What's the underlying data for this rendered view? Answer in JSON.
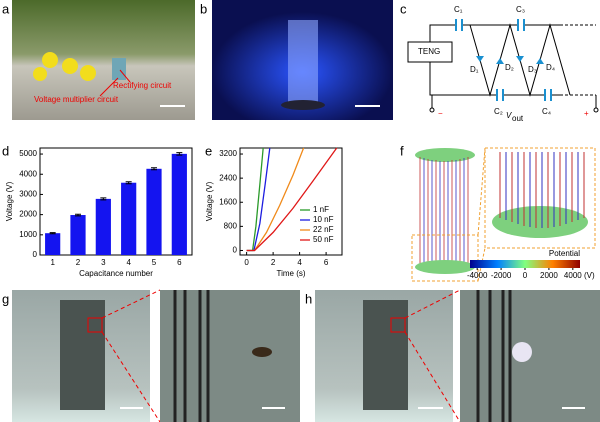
{
  "panel_labels": [
    "a",
    "b",
    "c",
    "d",
    "e",
    "f",
    "g",
    "h"
  ],
  "photo_a": {
    "rectifying": "Rectifying circuit",
    "multiplier": "Voltage multiplier circuit"
  },
  "circuit": {
    "source": "TENG",
    "capacitors": [
      "C₁",
      "C₂",
      "C₃",
      "C₄"
    ],
    "diodes": [
      "D₁",
      "D₂",
      "D₃",
      "D₄"
    ],
    "output_symbol": "V",
    "output_subscript": "out",
    "plus": "+",
    "minus": "−"
  },
  "colorbar": {
    "label": "Potential",
    "unit": "(V)",
    "lim": [
      -4600,
      4600
    ],
    "ticks": [
      -4000,
      -2000,
      0,
      2000,
      4000
    ]
  },
  "chart_data": [
    {
      "type": "bar",
      "categories": [
        "1",
        "2",
        "3",
        "4",
        "5",
        "6"
      ],
      "values": [
        1080,
        1980,
        2780,
        3580,
        4270,
        5010
      ],
      "errors": [
        30,
        40,
        50,
        50,
        50,
        60
      ],
      "color": "#1414f0",
      "ylim": [
        0,
        5300
      ],
      "yticks": [
        0,
        1000,
        2000,
        3000,
        4000,
        5000
      ],
      "ylabel": "Voltage (V)",
      "xlabel": "Capacitance number"
    },
    {
      "type": "line",
      "xlim": [
        -0.5,
        7.2
      ],
      "xticks": [
        0,
        2,
        4,
        6
      ],
      "ylim": [
        -150,
        3400
      ],
      "yticks": [
        0,
        800,
        1600,
        2400,
        3200
      ],
      "xlabel": "Time (s)",
      "ylabel": "Voltage (V)",
      "legend": "lower right",
      "series": [
        {
          "name": "1 nF",
          "color": "#2a9a2a",
          "x": [
            0,
            0.45,
            0.7,
            1.0,
            1.25
          ],
          "values": [
            0,
            0,
            800,
            2200,
            3400
          ]
        },
        {
          "name": "10 nF",
          "color": "#1d1de0",
          "x": [
            0,
            0.55,
            1.0,
            1.4,
            1.75
          ],
          "values": [
            0,
            0,
            900,
            2200,
            3400
          ]
        },
        {
          "name": "22 nF",
          "color": "#f08a1a",
          "x": [
            0,
            0.6,
            1.5,
            2.5,
            3.5,
            4.3
          ],
          "values": [
            0,
            0,
            600,
            1500,
            2500,
            3400
          ]
        },
        {
          "name": "50 nF",
          "color": "#e01818",
          "x": [
            0,
            0.6,
            2,
            3.5,
            5,
            6.8
          ],
          "values": [
            0,
            0,
            600,
            1400,
            2300,
            3400
          ]
        }
      ]
    }
  ]
}
